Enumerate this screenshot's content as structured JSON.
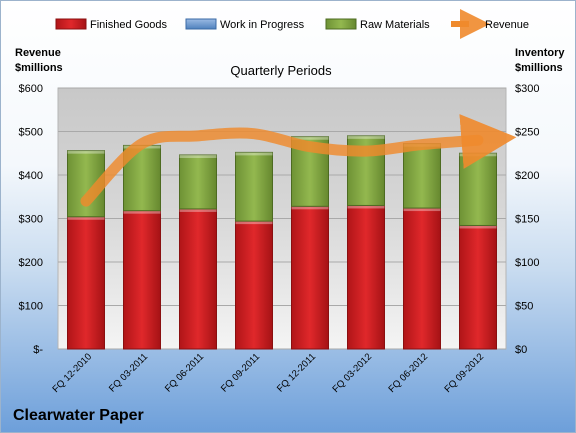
{
  "company": "Clearwater Paper",
  "chart_data": {
    "type": "bar",
    "title": "Quarterly Periods",
    "categories": [
      "FQ 12-2010",
      "FQ 03-2011",
      "FQ 06-2011",
      "FQ 09-2011",
      "FQ 12-2011",
      "FQ 03-2012",
      "FQ 06-2012",
      "FQ 09-2012"
    ],
    "series": [
      {
        "name": "Finished Goods",
        "axis": "right",
        "stack": true,
        "color": "#c8191c",
        "values": [
          152,
          159,
          161,
          147,
          164,
          165,
          162,
          142
        ]
      },
      {
        "name": "Work in Progress",
        "axis": "right",
        "stack": true,
        "color": "#4f81bd",
        "values": [
          0,
          0,
          0,
          0,
          0,
          0,
          0,
          0
        ]
      },
      {
        "name": "Raw Materials",
        "axis": "right",
        "stack": true,
        "color": "#7ea23f",
        "values": [
          76,
          75,
          62,
          79,
          80,
          80,
          74,
          83
        ]
      },
      {
        "name": "Revenue",
        "axis": "left",
        "type": "line",
        "color": "#ef8a2c",
        "values": [
          340,
          472,
          490,
          495,
          465,
          455,
          470,
          480
        ]
      }
    ],
    "ylabel_left": "Revenue $millions",
    "ylabel_right": "Inventory $millions",
    "ylim_left": [
      0,
      600
    ],
    "ylim_right": [
      0,
      300
    ],
    "left_ticks": [
      "$-",
      "$100",
      "$200",
      "$300",
      "$400",
      "$500",
      "$600"
    ],
    "right_ticks": [
      "$0",
      "$50",
      "$100",
      "$150",
      "$200",
      "$250",
      "$300"
    ],
    "legend": "top",
    "grid": true
  }
}
